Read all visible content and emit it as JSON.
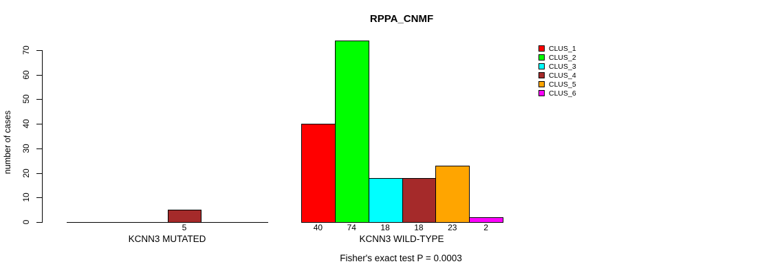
{
  "chart_data": {
    "type": "bar",
    "title": "RPPA_CNMF",
    "ylabel": "number of cases",
    "xlabel": "",
    "ylim": [
      0,
      70
    ],
    "yticks": [
      0,
      10,
      20,
      30,
      40,
      50,
      60,
      70
    ],
    "grid": false,
    "legend_position": "right",
    "axis_color": "#000000",
    "clusters": [
      {
        "label": "CLUS_1",
        "color": "#FF0000"
      },
      {
        "label": "CLUS_2",
        "color": "#00FF00"
      },
      {
        "label": "CLUS_3",
        "color": "#00FFFF"
      },
      {
        "label": "CLUS_4",
        "color": "#A52A2A"
      },
      {
        "label": "CLUS_5",
        "color": "#FFA500"
      },
      {
        "label": "CLUS_6",
        "color": "#FF00FF"
      }
    ],
    "groups": [
      {
        "label": "KCNN3 MUTATED",
        "values": [
          0,
          0,
          0,
          5,
          0,
          0
        ]
      },
      {
        "label": "KCNN3 WILD-TYPE",
        "values": [
          40,
          74,
          18,
          18,
          23,
          2
        ]
      }
    ],
    "footnote": "Fisher's exact test P = 0.0003"
  }
}
